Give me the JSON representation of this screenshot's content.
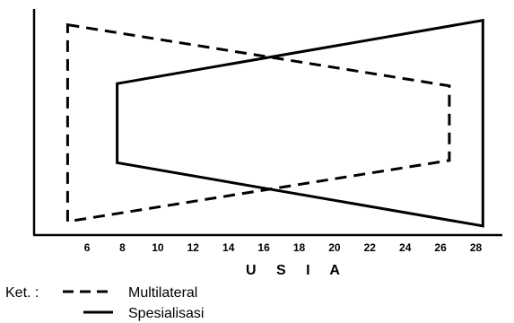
{
  "chart_data": {
    "type": "line",
    "xlabel": "U S I A",
    "x_ticks": [
      "6",
      "8",
      "10",
      "12",
      "14",
      "16",
      "18",
      "20",
      "22",
      "24",
      "26",
      "28"
    ],
    "xlim": [
      3,
      29.5
    ],
    "series": [
      {
        "name": "Multilateral",
        "line_style": "dashed",
        "shape": "closed trapezoid",
        "points": [
          {
            "x": 4.9,
            "y": 0.93
          },
          {
            "x": 26.5,
            "y": 0.66
          },
          {
            "x": 26.5,
            "y": 0.33
          },
          {
            "x": 4.9,
            "y": 0.06
          }
        ]
      },
      {
        "name": "Spesialisasi",
        "line_style": "solid",
        "shape": "closed trapezoid",
        "points": [
          {
            "x": 7.7,
            "y": 0.67
          },
          {
            "x": 28.4,
            "y": 0.95
          },
          {
            "x": 28.4,
            "y": 0.04
          },
          {
            "x": 7.7,
            "y": 0.32
          }
        ]
      }
    ]
  },
  "legend": {
    "prefix": "Ket. :",
    "items": [
      {
        "label": "Multilateral",
        "line_style": "dashed"
      },
      {
        "label": "Spesialisasi",
        "line_style": "solid"
      }
    ]
  }
}
